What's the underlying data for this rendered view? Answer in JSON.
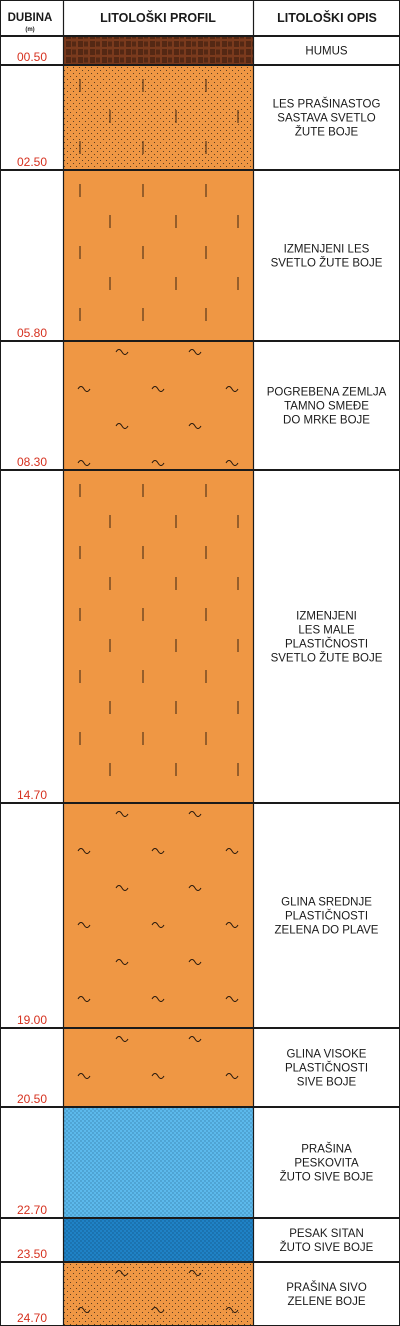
{
  "header": {
    "depth_title": "DUBINA",
    "depth_unit": "(m)",
    "profile_title": "LITOLOŠKI PROFIL",
    "description_title": "LITOLOŠKI OPIS"
  },
  "colors": {
    "frame": "#1a1a1a",
    "depth_text": "#d6311f",
    "humus": "#7a3a1d",
    "loess": "#ef9744",
    "dust_blue": "#5cb9ec",
    "sand_blue": "#1f82c6"
  },
  "layers": [
    {
      "depth": "00.50",
      "pattern": "humus",
      "fill": "#7a3a1d",
      "description": [
        "HUMUS"
      ]
    },
    {
      "depth": "02.50",
      "pattern": "dotted-ticks",
      "fill": "#ef9744",
      "description": [
        "LES PRAŠINASTOG",
        "SASTAVA SVETLO",
        "ŽUTE BOJE"
      ]
    },
    {
      "depth": "05.80",
      "pattern": "ticks",
      "fill": "#ef9744",
      "description": [
        "IZMENJENI LES",
        "SVETLO ŽUTE BOJE"
      ]
    },
    {
      "depth": "08.30",
      "pattern": "waves",
      "fill": "#ef9744",
      "description": [
        "POGREBENA ZEMLJA",
        "TAMNO SMEĐE",
        "DO MRKE BOJE"
      ]
    },
    {
      "depth": "14.70",
      "pattern": "ticks",
      "fill": "#ef9744",
      "description": [
        "IZMENJENI",
        "LES MALE",
        "PLASTIČNOSTI",
        "SVETLO ŽUTE BOJE"
      ]
    },
    {
      "depth": "19.00",
      "pattern": "waves",
      "fill": "#ef9744",
      "description": [
        "GLINA SREDNJE",
        "PLASTIČNOSTI",
        "ZELENA DO PLAVE"
      ]
    },
    {
      "depth": "20.50",
      "pattern": "waves",
      "fill": "#ef9744",
      "description": [
        "GLINA VISOKE",
        "PLASTIČNOSTI",
        "SIVE BOJE"
      ]
    },
    {
      "depth": "22.70",
      "pattern": "dotted",
      "fill": "#5cb9ec",
      "description": [
        "PRAŠINA",
        "PESKOVITA",
        "ŽUTO SIVE BOJE"
      ]
    },
    {
      "depth": "23.50",
      "pattern": "dotted",
      "fill": "#1f82c6",
      "description": [
        "PESAK SITAN",
        "ŽUTO SIVE BOJE"
      ]
    },
    {
      "depth": "24.70",
      "pattern": "dotted-waves",
      "fill": "#ef9744",
      "description": [
        "PRAŠINA SIVO",
        "ZELENE BOJE"
      ]
    }
  ]
}
